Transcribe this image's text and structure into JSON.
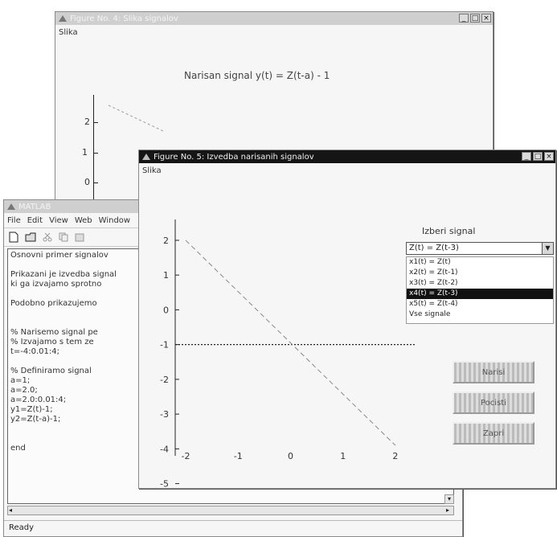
{
  "fig4": {
    "title": "Figure No. 4: Slika signalov",
    "menu": [
      "Slika"
    ],
    "plot_title": "Narisan signal y(t) = Z(t-a) - 1",
    "yticks": [
      "2",
      "1",
      "0"
    ]
  },
  "matlab": {
    "title": "MATLAB",
    "menu": [
      "File",
      "Edit",
      "View",
      "Web",
      "Window"
    ],
    "lines": [
      "Osnovni primer signalov",
      "",
      "Prikazani je izvedba signal",
      "ki ga izvajamo sprotno",
      "",
      " Podobno prikazujemo",
      "",
      "",
      "% Narisemo signal pe",
      "% Izvajamo s tem ze",
      "t=-4:0.01:4;",
      "",
      "% Definiramo signal",
      "a=1;",
      "a=2.0;",
      "a=2.0:0.01:4;",
      "y1=Z(t)-1;",
      "y2=Z(t-a)-1;",
      "",
      "",
      "end"
    ],
    "status": "Ready"
  },
  "fig5": {
    "title": "Figure No. 5: Izvedba narisanih signalov",
    "menu": [
      "Slika"
    ],
    "select_label": "Izberi signal",
    "select_value": "Z(t) = Z(t-3)",
    "options": [
      "x1(t) = Z(t)",
      "x2(t) = Z(t-1)",
      "x3(t) = Z(t-2)",
      "x4(t) = Z(t-3)",
      "x5(t) = Z(t-4)",
      "Vse signale"
    ],
    "selected_index": 3,
    "yticks": [
      "2",
      "1",
      "0",
      "-1",
      "-2",
      "-3",
      "-4",
      "-5"
    ],
    "xticks": [
      "-2",
      "-1",
      "0",
      "1",
      "2"
    ],
    "buttons": [
      "Narisi",
      "Pocisti",
      "Zapri"
    ]
  },
  "chart_data": {
    "type": "line",
    "title": "",
    "xlabel": "",
    "ylabel": "",
    "x": [
      -2,
      2
    ],
    "series": [
      {
        "values": [
          2,
          -3.9
        ]
      }
    ],
    "baseline_y": -1,
    "xlim": [
      -2.2,
      2.4
    ],
    "ylim": [
      -4.2,
      2.6
    ],
    "grid": false
  },
  "colors": {
    "inactive_title": "#cfcfcf",
    "active_title": "#151515",
    "window_bg": "#f6f6f6",
    "line": "#888888"
  }
}
